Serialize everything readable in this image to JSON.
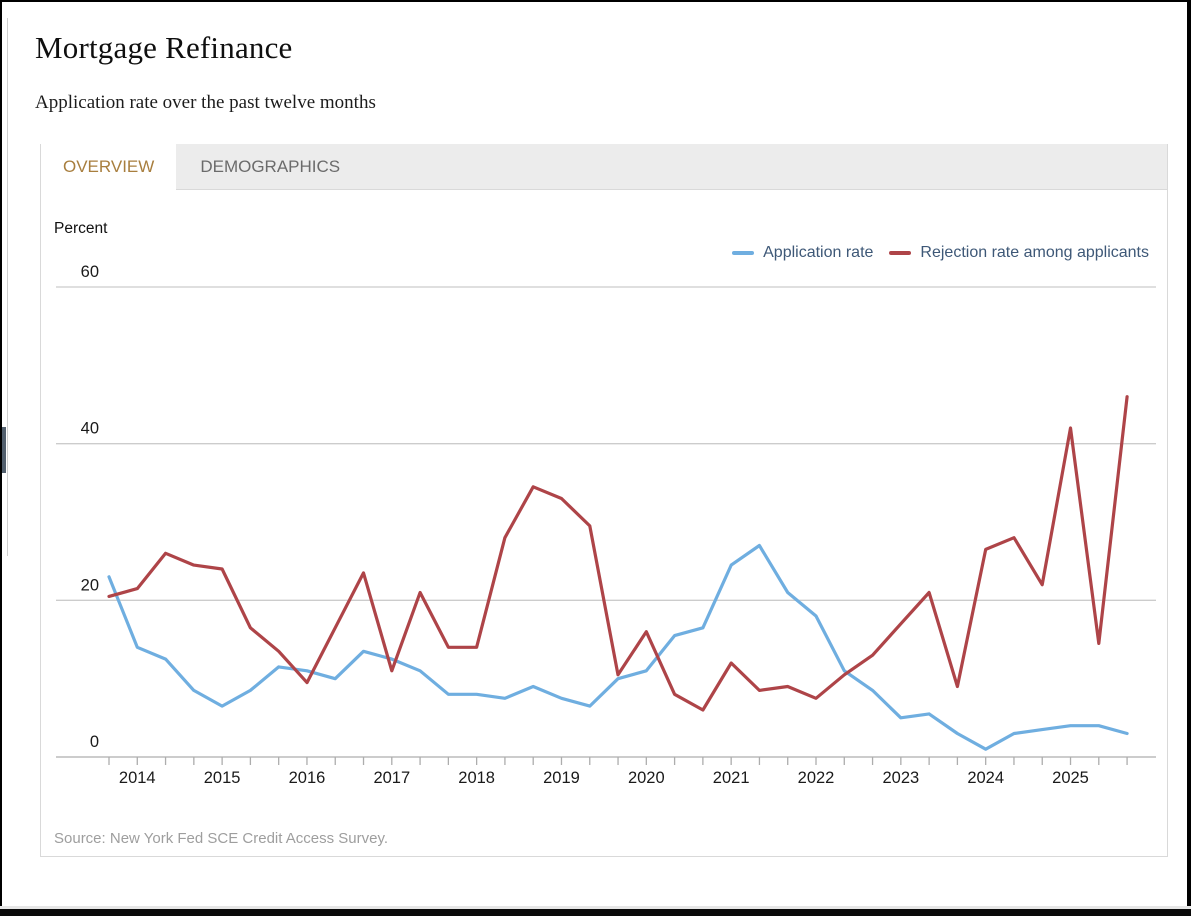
{
  "page": {
    "title": "Mortgage Refinance",
    "subtitle": "Application rate over the past twelve months"
  },
  "tabs": [
    {
      "label": "OVERVIEW",
      "active": true
    },
    {
      "label": "DEMOGRAPHICS",
      "active": false
    }
  ],
  "chart": {
    "unit_label": "Percent",
    "source": "Source: New York Fed SCE Credit Access Survey.",
    "legend": [
      {
        "label": "Application rate",
        "color": "#6FAEE0"
      },
      {
        "label": "Rejection rate among applicants",
        "color": "#AE4448"
      }
    ]
  },
  "chart_data": {
    "type": "line",
    "title": "Mortgage Refinance",
    "subtitle": "Application rate over the past twelve months",
    "ylabel": "Percent",
    "ylim": [
      0,
      60
    ],
    "yticks": [
      0,
      20,
      40,
      60
    ],
    "grid": "horizontal-gridlines",
    "legend_position": "top-right",
    "x": [
      "Oct 2013",
      "Feb 2014",
      "Jun 2014",
      "Oct 2014",
      "Feb 2015",
      "Jun 2015",
      "Oct 2015",
      "Feb 2016",
      "Jun 2016",
      "Oct 2016",
      "Feb 2017",
      "Jun 2017",
      "Oct 2017",
      "Feb 2018",
      "Jun 2018",
      "Oct 2018",
      "Feb 2019",
      "Jun 2019",
      "Oct 2019",
      "Feb 2020",
      "Jun 2020",
      "Oct 2020",
      "Feb 2021",
      "Jun 2021",
      "Oct 2021",
      "Feb 2022",
      "Jun 2022",
      "Oct 2022",
      "Feb 2023",
      "Jun 2023",
      "Oct 2023",
      "Feb 2024",
      "Jun 2024",
      "Oct 2024",
      "Feb 2025",
      "Jun 2025",
      "Oct 2025"
    ],
    "year_labels": [
      "2014",
      "2015",
      "2016",
      "2017",
      "2018",
      "2019",
      "2020",
      "2021",
      "2022",
      "2023",
      "2024",
      "2025"
    ],
    "year_label_indices": [
      1,
      4,
      7,
      10,
      13,
      16,
      19,
      22,
      25,
      28,
      31,
      34
    ],
    "series": [
      {
        "name": "Application rate",
        "color": "#6FAEE0",
        "values": [
          23,
          14,
          12.5,
          8.5,
          6.5,
          8.5,
          11.5,
          11,
          10,
          13.5,
          12.5,
          11,
          8,
          8,
          7.5,
          9,
          7.5,
          6.5,
          10,
          11,
          15.5,
          16.5,
          24.5,
          27,
          21,
          18,
          11,
          8.5,
          5,
          5.5,
          3,
          1,
          3,
          3.5,
          4,
          4,
          3
        ]
      },
      {
        "name": "Rejection rate among applicants",
        "color": "#AE4448",
        "values": [
          20.5,
          21.5,
          26,
          24.5,
          24,
          16.5,
          13.5,
          9.5,
          16.5,
          23.5,
          11,
          21,
          14,
          14,
          28,
          34.5,
          33,
          29.5,
          10.5,
          16,
          8,
          6,
          12,
          8.5,
          9,
          7.5,
          10.5,
          13,
          17,
          21,
          9,
          26.5,
          28,
          22,
          42,
          14.5,
          46
        ]
      }
    ]
  }
}
